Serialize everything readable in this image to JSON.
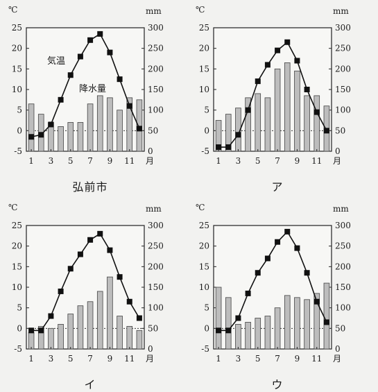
{
  "chart_data": [
    {
      "type": "bar+line",
      "title": "弘前市",
      "temp_unit": "℃",
      "precip_unit": "mm",
      "month_unit": "月",
      "temp_ticks": [
        -5,
        0,
        5,
        10,
        15,
        20,
        25
      ],
      "precip_ticks": [
        0,
        50,
        100,
        150,
        200,
        250,
        300
      ],
      "month_ticks": [
        1,
        3,
        5,
        7,
        9,
        11
      ],
      "temp_range": [
        -5,
        25
      ],
      "precip_range": [
        0,
        300
      ],
      "annotations": [
        "気温",
        "降水量"
      ],
      "months": [
        1,
        2,
        3,
        4,
        5,
        6,
        7,
        8,
        9,
        10,
        11,
        12
      ],
      "temperature": [
        -1.5,
        -1.0,
        1.5,
        7.5,
        13.5,
        18.0,
        22.0,
        23.5,
        19.0,
        12.5,
        6.0,
        0.5
      ],
      "precipitation": [
        115,
        90,
        70,
        60,
        70,
        70,
        115,
        135,
        130,
        100,
        130,
        125
      ]
    },
    {
      "type": "bar+line",
      "title": "ア",
      "temp_unit": "℃",
      "precip_unit": "mm",
      "month_unit": "月",
      "temp_ticks": [
        -5,
        0,
        5,
        10,
        15,
        20,
        25
      ],
      "precip_ticks": [
        0,
        50,
        100,
        150,
        200,
        250,
        300
      ],
      "month_ticks": [
        1,
        3,
        5,
        7,
        9,
        11
      ],
      "temp_range": [
        -5,
        25
      ],
      "precip_range": [
        0,
        300
      ],
      "months": [
        1,
        2,
        3,
        4,
        5,
        6,
        7,
        8,
        9,
        10,
        11,
        12
      ],
      "temperature": [
        -4.0,
        -4.0,
        -1.0,
        5.0,
        12.0,
        16.0,
        19.5,
        21.5,
        17.0,
        10.0,
        4.5,
        0.0
      ],
      "precipitation": [
        75,
        90,
        105,
        130,
        140,
        130,
        200,
        215,
        195,
        135,
        135,
        110
      ]
    },
    {
      "type": "bar+line",
      "title": "イ",
      "temp_unit": "℃",
      "precip_unit": "mm",
      "month_unit": "月",
      "temp_ticks": [
        -5,
        0,
        5,
        10,
        15,
        20,
        25
      ],
      "precip_ticks": [
        0,
        50,
        100,
        150,
        200,
        250,
        300
      ],
      "month_ticks": [
        1,
        3,
        5,
        7,
        9,
        11
      ],
      "temp_range": [
        -5,
        25
      ],
      "precip_range": [
        0,
        300
      ],
      "months": [
        1,
        2,
        3,
        4,
        5,
        6,
        7,
        8,
        9,
        10,
        11,
        12
      ],
      "temperature": [
        -0.5,
        -0.5,
        3.0,
        9.0,
        14.5,
        18.0,
        21.5,
        23.0,
        19.0,
        12.5,
        6.5,
        2.5
      ],
      "precipitation": [
        40,
        55,
        50,
        60,
        85,
        105,
        115,
        140,
        175,
        80,
        55,
        45
      ]
    },
    {
      "type": "bar+line",
      "title": "ウ",
      "temp_unit": "℃",
      "precip_unit": "mm",
      "month_unit": "月",
      "temp_ticks": [
        -5,
        0,
        5,
        10,
        15,
        20,
        25
      ],
      "precip_ticks": [
        0,
        50,
        100,
        150,
        200,
        250,
        300
      ],
      "month_ticks": [
        1,
        3,
        5,
        7,
        9,
        11
      ],
      "temp_range": [
        -5,
        25
      ],
      "precip_range": [
        0,
        300
      ],
      "months": [
        1,
        2,
        3,
        4,
        5,
        6,
        7,
        8,
        9,
        10,
        11,
        12
      ],
      "temperature": [
        -0.5,
        -0.5,
        2.5,
        8.5,
        13.5,
        17.0,
        21.0,
        23.5,
        19.5,
        13.5,
        6.5,
        1.5
      ],
      "precipitation": [
        150,
        125,
        60,
        65,
        75,
        80,
        100,
        130,
        125,
        120,
        135,
        160
      ]
    }
  ]
}
